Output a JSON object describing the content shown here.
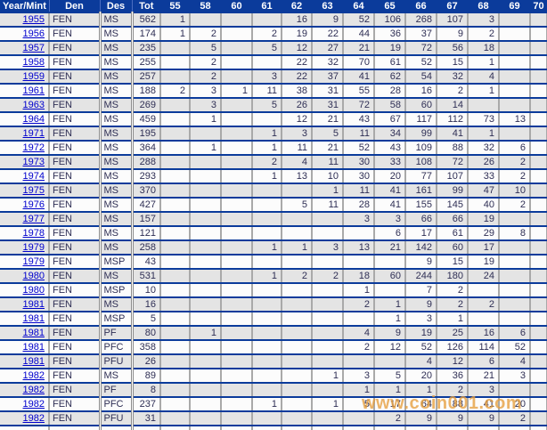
{
  "table": {
    "columns": [
      "Year/Mint",
      "Den",
      "Des",
      "Tot",
      "55",
      "58",
      "60",
      "61",
      "62",
      "63",
      "64",
      "65",
      "66",
      "67",
      "68",
      "69",
      "70"
    ],
    "rows": [
      [
        "1955",
        "FEN",
        "MS",
        "562",
        "1",
        "",
        "",
        "",
        "16",
        "9",
        "52",
        "106",
        "268",
        "107",
        "3",
        "",
        ""
      ],
      [
        "1956",
        "FEN",
        "MS",
        "174",
        "1",
        "2",
        "",
        "2",
        "19",
        "22",
        "44",
        "36",
        "37",
        "9",
        "2",
        "",
        ""
      ],
      [
        "1957",
        "FEN",
        "MS",
        "235",
        "",
        "5",
        "",
        "5",
        "12",
        "27",
        "21",
        "19",
        "72",
        "56",
        "18",
        "",
        ""
      ],
      [
        "1958",
        "FEN",
        "MS",
        "255",
        "",
        "2",
        "",
        "",
        "22",
        "32",
        "70",
        "61",
        "52",
        "15",
        "1",
        "",
        ""
      ],
      [
        "1959",
        "FEN",
        "MS",
        "257",
        "",
        "2",
        "",
        "3",
        "22",
        "37",
        "41",
        "62",
        "54",
        "32",
        "4",
        "",
        ""
      ],
      [
        "1961",
        "FEN",
        "MS",
        "188",
        "2",
        "3",
        "1",
        "11",
        "38",
        "31",
        "55",
        "28",
        "16",
        "2",
        "1",
        "",
        ""
      ],
      [
        "1963",
        "FEN",
        "MS",
        "269",
        "",
        "3",
        "",
        "5",
        "26",
        "31",
        "72",
        "58",
        "60",
        "14",
        "",
        "",
        ""
      ],
      [
        "1964",
        "FEN",
        "MS",
        "459",
        "",
        "1",
        "",
        "",
        "12",
        "21",
        "43",
        "67",
        "117",
        "112",
        "73",
        "13",
        ""
      ],
      [
        "1971",
        "FEN",
        "MS",
        "195",
        "",
        "",
        "",
        "1",
        "3",
        "5",
        "11",
        "34",
        "99",
        "41",
        "1",
        "",
        ""
      ],
      [
        "1972",
        "FEN",
        "MS",
        "364",
        "",
        "1",
        "",
        "1",
        "11",
        "21",
        "52",
        "43",
        "109",
        "88",
        "32",
        "6",
        ""
      ],
      [
        "1973",
        "FEN",
        "MS",
        "288",
        "",
        "",
        "",
        "2",
        "4",
        "11",
        "30",
        "33",
        "108",
        "72",
        "26",
        "2",
        ""
      ],
      [
        "1974",
        "FEN",
        "MS",
        "293",
        "",
        "",
        "",
        "1",
        "13",
        "10",
        "30",
        "20",
        "77",
        "107",
        "33",
        "2",
        ""
      ],
      [
        "1975",
        "FEN",
        "MS",
        "370",
        "",
        "",
        "",
        "",
        "",
        "1",
        "11",
        "41",
        "161",
        "99",
        "47",
        "10",
        ""
      ],
      [
        "1976",
        "FEN",
        "MS",
        "427",
        "",
        "",
        "",
        "",
        "5",
        "11",
        "28",
        "41",
        "155",
        "145",
        "40",
        "2",
        ""
      ],
      [
        "1977",
        "FEN",
        "MS",
        "157",
        "",
        "",
        "",
        "",
        "",
        "",
        "3",
        "3",
        "66",
        "66",
        "19",
        "",
        ""
      ],
      [
        "1978",
        "FEN",
        "MS",
        "121",
        "",
        "",
        "",
        "",
        "",
        "",
        "",
        "6",
        "17",
        "61",
        "29",
        "8",
        ""
      ],
      [
        "1979",
        "FEN",
        "MS",
        "258",
        "",
        "",
        "",
        "1",
        "1",
        "3",
        "13",
        "21",
        "142",
        "60",
        "17",
        "",
        ""
      ],
      [
        "1979",
        "FEN",
        "MSP",
        "43",
        "",
        "",
        "",
        "",
        "",
        "",
        "",
        "",
        "9",
        "15",
        "19",
        "",
        ""
      ],
      [
        "1980",
        "FEN",
        "MS",
        "531",
        "",
        "",
        "",
        "1",
        "2",
        "2",
        "18",
        "60",
        "244",
        "180",
        "24",
        "",
        ""
      ],
      [
        "1980",
        "FEN",
        "MSP",
        "10",
        "",
        "",
        "",
        "",
        "",
        "",
        "1",
        "",
        "7",
        "2",
        "",
        "",
        ""
      ],
      [
        "1981",
        "FEN",
        "MS",
        "16",
        "",
        "",
        "",
        "",
        "",
        "",
        "2",
        "1",
        "9",
        "2",
        "2",
        "",
        ""
      ],
      [
        "1981",
        "FEN",
        "MSP",
        "5",
        "",
        "",
        "",
        "",
        "",
        "",
        "",
        "1",
        "3",
        "1",
        "",
        "",
        ""
      ],
      [
        "1981",
        "FEN",
        "PF",
        "80",
        "",
        "1",
        "",
        "",
        "",
        "",
        "4",
        "9",
        "19",
        "25",
        "16",
        "6",
        ""
      ],
      [
        "1981",
        "FEN",
        "PFC",
        "358",
        "",
        "",
        "",
        "",
        "",
        "",
        "2",
        "12",
        "52",
        "126",
        "114",
        "52",
        ""
      ],
      [
        "1981",
        "FEN",
        "PFU",
        "26",
        "",
        "",
        "",
        "",
        "",
        "",
        "",
        "",
        "4",
        "12",
        "6",
        "4",
        ""
      ],
      [
        "1982",
        "FEN",
        "MS",
        "89",
        "",
        "",
        "",
        "",
        "",
        "1",
        "3",
        "5",
        "20",
        "36",
        "21",
        "3",
        ""
      ],
      [
        "1982",
        "FEN",
        "PF",
        "8",
        "",
        "",
        "",
        "",
        "",
        "",
        "1",
        "1",
        "1",
        "2",
        "3",
        "",
        ""
      ],
      [
        "1982",
        "FEN",
        "PFC",
        "237",
        "",
        "",
        "",
        "1",
        "",
        "1",
        "5",
        "17",
        "64",
        "88",
        "41",
        "20",
        ""
      ],
      [
        "1982",
        "FEN",
        "PFU",
        "31",
        "",
        "",
        "",
        "",
        "",
        "",
        "",
        "2",
        "9",
        "9",
        "9",
        "2",
        ""
      ]
    ]
  },
  "watermark": {
    "text": "www.coin001.com"
  },
  "colors": {
    "header_bg": "#0b3b9b",
    "row_separator": "#0b3b9b",
    "grid_line": "#a9a9a9",
    "stripe_row": "#e4e4e4",
    "link_blue": "#0000cd",
    "watermark_orange": "#e59e3c"
  }
}
